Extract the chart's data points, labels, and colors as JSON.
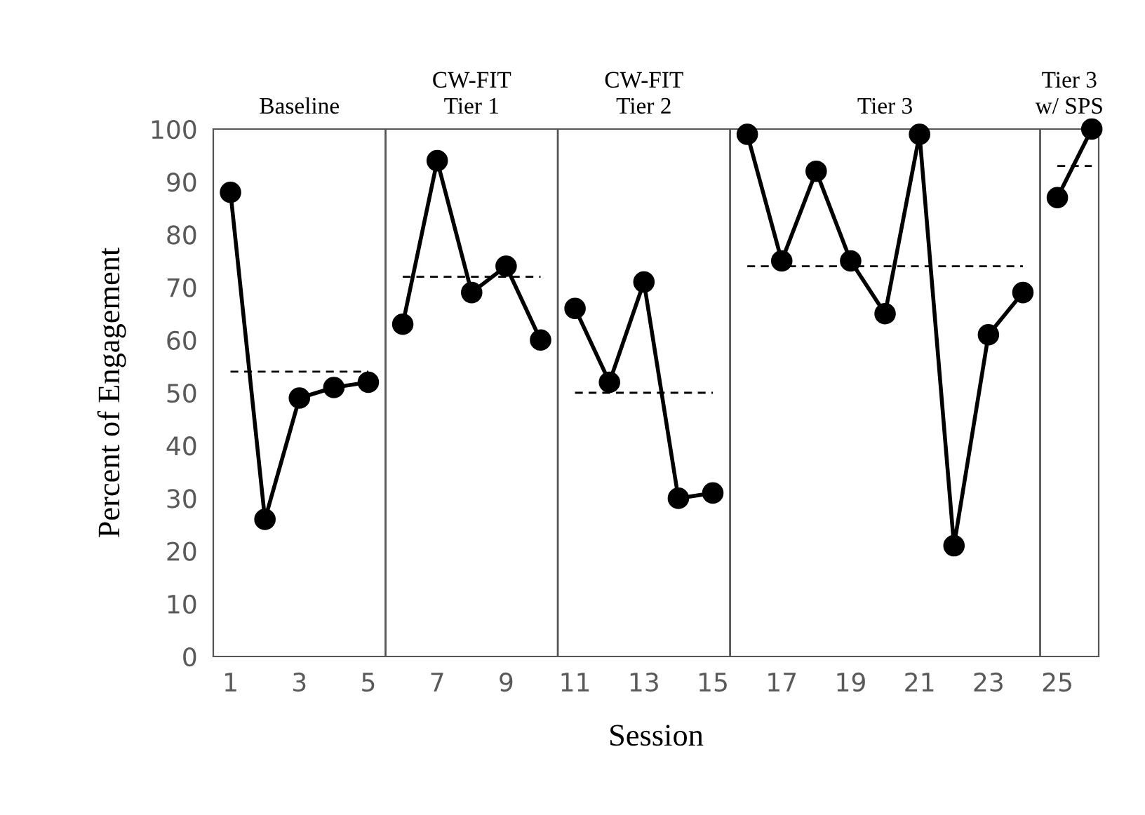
{
  "chart_data": {
    "type": "line",
    "xlabel": "Session",
    "ylabel": "Percent of Engagement",
    "xlim": [
      0.5,
      26.2
    ],
    "ylim": [
      0,
      100
    ],
    "xticks": [
      1,
      3,
      5,
      7,
      9,
      11,
      13,
      15,
      17,
      19,
      21,
      23,
      25
    ],
    "yticks": [
      0,
      10,
      20,
      30,
      40,
      50,
      60,
      70,
      80,
      90,
      100
    ],
    "grid": false,
    "legend": false,
    "series": [
      {
        "color": "#000000",
        "marker": "circle",
        "line_style": "solid",
        "x": [
          1,
          2,
          3,
          4,
          5
        ],
        "values": [
          88,
          26,
          49,
          51,
          52
        ]
      },
      {
        "color": "#000000",
        "marker": "circle",
        "line_style": "solid",
        "x": [
          6,
          7,
          8,
          9,
          10
        ],
        "values": [
          63,
          94,
          69,
          74,
          60
        ]
      },
      {
        "color": "#000000",
        "marker": "circle",
        "line_style": "solid",
        "x": [
          11,
          12,
          13,
          14,
          15
        ],
        "values": [
          66,
          52,
          71,
          30,
          31
        ]
      },
      {
        "color": "#000000",
        "marker": "circle",
        "line_style": "solid",
        "x": [
          16,
          17,
          18,
          19,
          20,
          21,
          22,
          23,
          24
        ],
        "values": [
          99,
          75,
          92,
          75,
          65,
          99,
          21,
          61,
          69
        ]
      },
      {
        "color": "#000000",
        "marker": "circle",
        "line_style": "solid",
        "x": [
          25,
          26
        ],
        "values": [
          87,
          100
        ]
      },
      {
        "color": "#000000",
        "marker": "none",
        "line_style": "dashed",
        "x": [
          1,
          5
        ],
        "values": [
          54,
          54
        ]
      },
      {
        "color": "#000000",
        "marker": "none",
        "line_style": "dashed",
        "x": [
          6,
          10
        ],
        "values": [
          72,
          72
        ]
      },
      {
        "color": "#000000",
        "marker": "none",
        "line_style": "dashed",
        "x": [
          11,
          15
        ],
        "values": [
          50,
          50
        ]
      },
      {
        "color": "#000000",
        "marker": "none",
        "line_style": "dashed",
        "x": [
          16,
          24
        ],
        "values": [
          74,
          74
        ]
      },
      {
        "color": "#000000",
        "marker": "none",
        "line_style": "dashed",
        "x": [
          25,
          26
        ],
        "values": [
          93,
          93
        ]
      }
    ],
    "ref_lines": [
      {
        "axis": "x",
        "value": 5.5,
        "color": "#555555"
      },
      {
        "axis": "x",
        "value": 10.5,
        "color": "#555555"
      },
      {
        "axis": "x",
        "value": 15.5,
        "color": "#555555"
      },
      {
        "axis": "x",
        "value": 24.5,
        "color": "#555555"
      }
    ],
    "annotations": [
      "Baseline",
      "CW-FIT\nTier 1",
      "CW-FIT\nTier 2",
      "Tier 3",
      "Tier 3\nw/ SPS"
    ]
  }
}
